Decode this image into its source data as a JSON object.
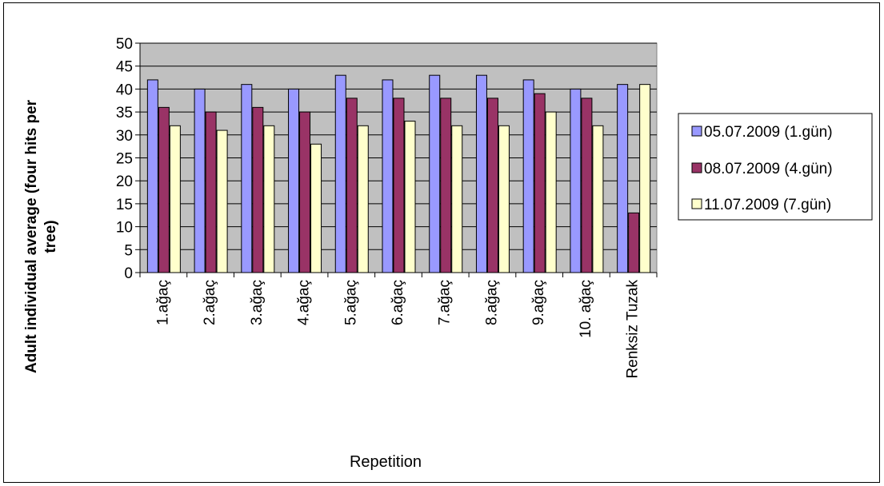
{
  "chart_data": {
    "type": "bar",
    "title": "",
    "xlabel": "Repetition",
    "ylabel_lines": [
      "Adult individual  average (four hits per",
      "tree)"
    ],
    "ylim": [
      0,
      50
    ],
    "yticks": [
      0,
      5,
      10,
      15,
      20,
      25,
      30,
      35,
      40,
      45,
      50
    ],
    "grid": true,
    "legend_position": "right",
    "categories": [
      "1.ağaç",
      "2.ağaç",
      "3.ağaç",
      "4.ağaç",
      "5.ağaç",
      "6.ağaç",
      "7.ağaç",
      "8.ağaç",
      "9.ağaç",
      "10. ağaç",
      "Renksiz Tuzak"
    ],
    "series": [
      {
        "name": "05.07.2009 (1.gün)",
        "color": "#9999ff",
        "values": [
          42,
          40,
          41,
          40,
          43,
          42,
          43,
          43,
          42,
          40,
          41
        ]
      },
      {
        "name": "08.07.2009 (4.gün)",
        "color": "#993366",
        "values": [
          36,
          35,
          36,
          35,
          38,
          38,
          38,
          38,
          39,
          38,
          13
        ]
      },
      {
        "name": "11.07.2009 (7.gün)",
        "color": "#ffffcc",
        "values": [
          32,
          31,
          32,
          28,
          32,
          33,
          32,
          32,
          35,
          32,
          41
        ]
      }
    ],
    "plot_background": "#c0c0c0"
  }
}
